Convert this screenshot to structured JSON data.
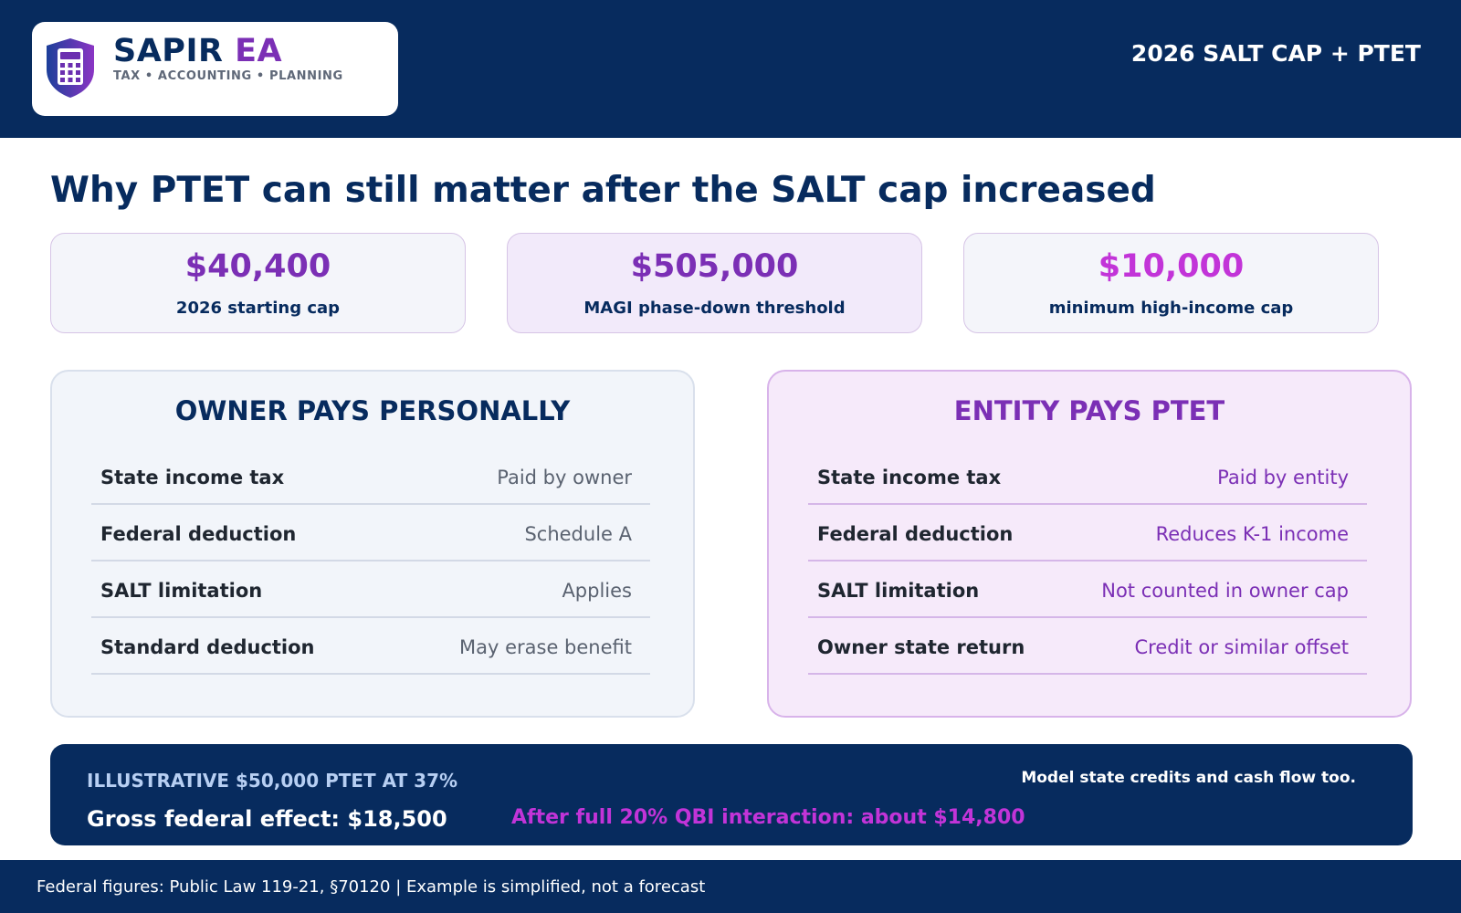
{
  "header": {
    "brand_name": "SAPIR",
    "brand_accent": "EA",
    "tagline": "TAX • ACCOUNTING • PLANNING",
    "title": "2026 SALT CAP + PTET",
    "logo_icon": "calculator-shield-icon"
  },
  "page_title": "Why PTET can still matter after the SALT cap increased",
  "stats": [
    {
      "value": "$40,400",
      "label": "2026 starting cap"
    },
    {
      "value": "$505,000",
      "label": "MAGI phase-down threshold"
    },
    {
      "value": "$10,000",
      "label": "minimum high-income cap"
    }
  ],
  "owner_panel": {
    "title": "OWNER PAYS PERSONALLY",
    "rows": [
      {
        "label": "State income tax",
        "value": "Paid by owner"
      },
      {
        "label": "Federal deduction",
        "value": "Schedule A"
      },
      {
        "label": "SALT limitation",
        "value": "Applies"
      },
      {
        "label": "Standard deduction",
        "value": "May erase benefit"
      }
    ]
  },
  "entity_panel": {
    "title": "ENTITY PAYS PTET",
    "rows": [
      {
        "label": "State income tax",
        "value": "Paid by entity"
      },
      {
        "label": "Federal deduction",
        "value": "Reduces K-1 income"
      },
      {
        "label": "SALT limitation",
        "value": "Not counted in owner cap"
      },
      {
        "label": "Owner state return",
        "value": "Credit or similar offset"
      }
    ]
  },
  "example": {
    "heading": "ILLUSTRATIVE $50,000 PTET AT 37%",
    "gross": "Gross federal effect: $18,500",
    "qbi": "After full 20% QBI interaction: about $14,800",
    "note": "Model state credits and cash flow too."
  },
  "footer": "Federal figures: Public Law 119-21, §70120  |  Example is simplified, not a forecast",
  "colors": {
    "navy": "#072b5e",
    "purple": "#7b2fb5",
    "magenta": "#c234d8"
  }
}
